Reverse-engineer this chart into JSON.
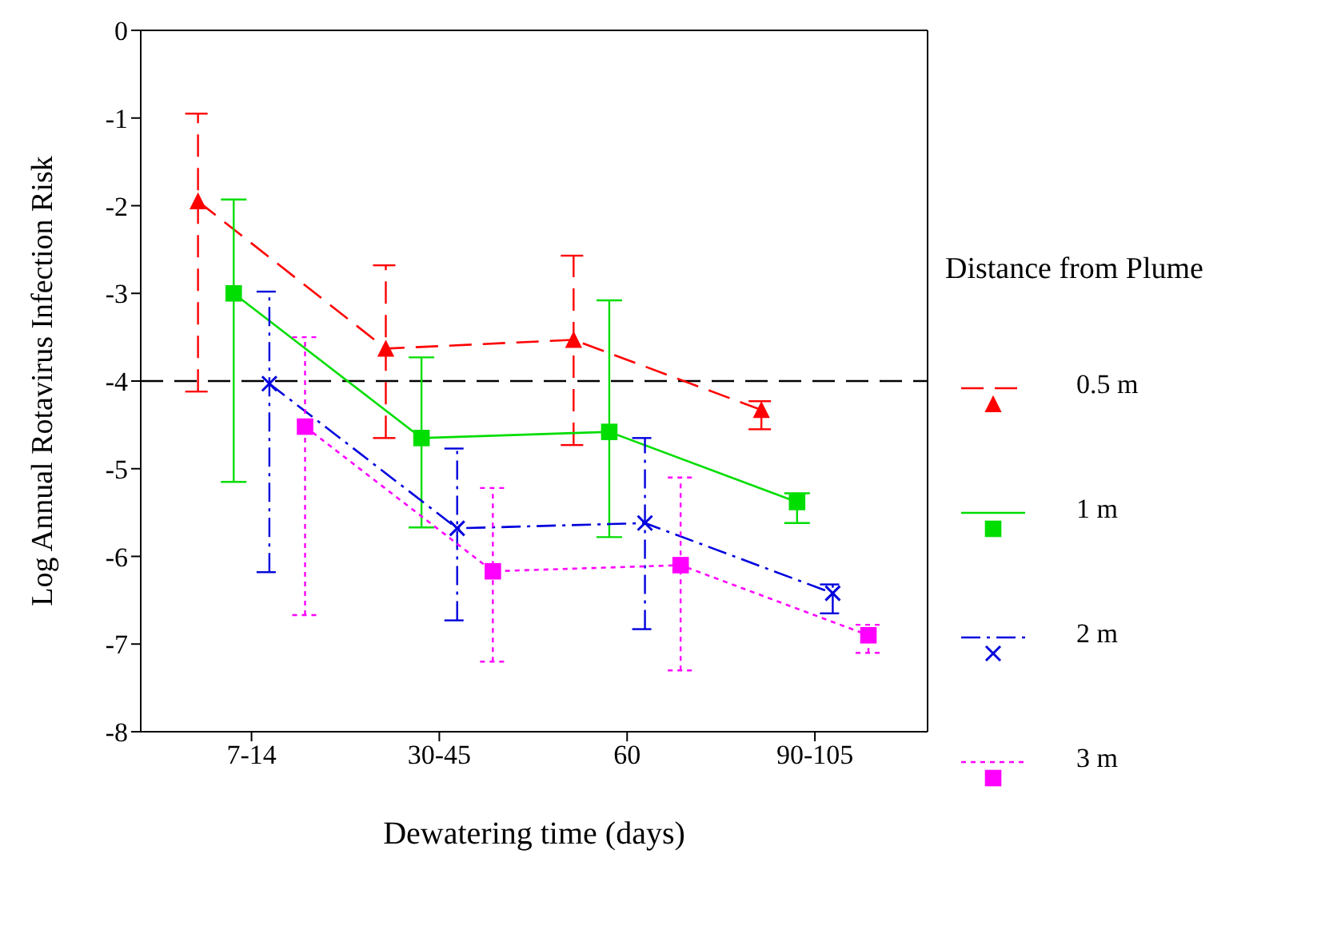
{
  "chart_data": {
    "type": "line",
    "xlabel": "Dewatering time (days)",
    "ylabel": "Log Annual Rotavirus Infection Risk",
    "legend_title": "Distance from Plume",
    "categories": [
      "7-14",
      "30-45",
      "60",
      "90-105"
    ],
    "ylim": [
      -8,
      0
    ],
    "yticks": [
      -8,
      -7,
      -6,
      -5,
      -4,
      -3,
      -2,
      -1,
      0
    ],
    "legend": "right",
    "grid": false,
    "series": [
      {
        "name": "0.5 m",
        "color": "#ff0000",
        "marker": "triangle",
        "line_style": "dashed",
        "values": [
          -1.95,
          -3.63,
          -3.53,
          -4.33
        ],
        "errors": [
          [
            -4.12,
            -0.95
          ],
          [
            -4.65,
            -2.68
          ],
          [
            -4.73,
            -2.57
          ],
          [
            -4.55,
            -4.23
          ]
        ]
      },
      {
        "name": "1 m",
        "color": "#00dd00",
        "marker": "square",
        "line_style": "solid",
        "values": [
          -3.0,
          -4.65,
          -4.58,
          -5.38
        ],
        "errors": [
          [
            -5.15,
            -1.93
          ],
          [
            -5.67,
            -3.73
          ],
          [
            -5.78,
            -3.08
          ],
          [
            -5.62,
            -5.28
          ]
        ]
      },
      {
        "name": "2 m",
        "color": "#0000dd",
        "marker": "cross",
        "line_style": "dashdot",
        "values": [
          -4.03,
          -5.68,
          -5.62,
          -6.42
        ],
        "errors": [
          [
            -6.18,
            -2.98
          ],
          [
            -6.73,
            -4.77
          ],
          [
            -6.83,
            -4.65
          ],
          [
            -6.65,
            -6.32
          ]
        ]
      },
      {
        "name": "3 m",
        "color": "#ff00ff",
        "marker": "square",
        "line_style": "dotted",
        "values": [
          -4.52,
          -6.17,
          -6.1,
          -6.9
        ],
        "errors": [
          [
            -6.67,
            -3.5
          ],
          [
            -7.2,
            -5.22
          ],
          [
            -7.3,
            -5.1
          ],
          [
            -7.1,
            -6.78
          ]
        ]
      }
    ],
    "ref_lines": [
      {
        "axis": "y",
        "value": -4,
        "color": "#000000",
        "line_style": "dashed"
      }
    ]
  }
}
